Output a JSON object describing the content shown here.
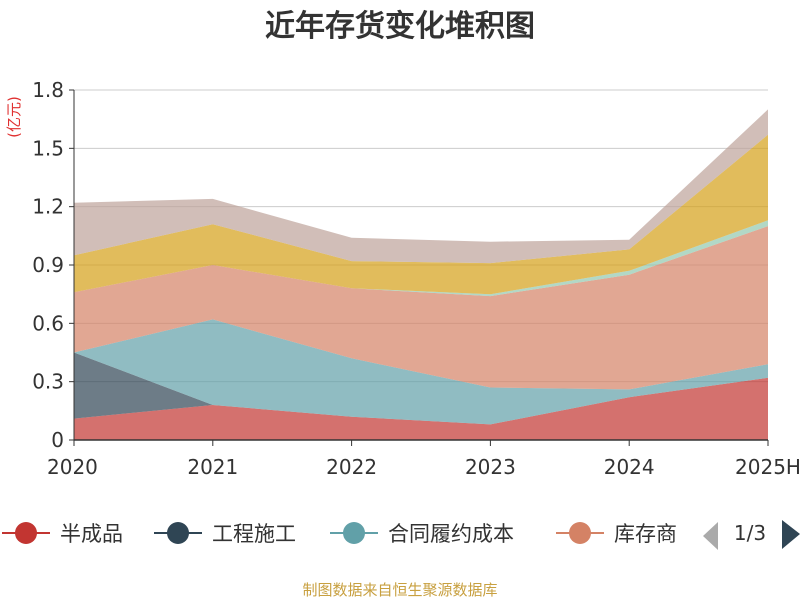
{
  "chart_data": {
    "type": "area",
    "stacked": true,
    "title": "近年存货变化堆积图",
    "ylabel": "(亿元)",
    "xlabel": "",
    "categories": [
      "2020",
      "2021",
      "2022",
      "2023",
      "2024",
      "2025H"
    ],
    "ylim": [
      0,
      1.8
    ],
    "yticks": [
      "0",
      "0.3",
      "0.6",
      "0.9",
      "1.2",
      "1.5",
      "1.8"
    ],
    "grid": true,
    "series": [
      {
        "name": "半成品",
        "color": "#c23531",
        "values": [
          0.11,
          0.18,
          0.12,
          0.08,
          0.22,
          0.32
        ]
      },
      {
        "name": "工程施工",
        "color": "#2f4554",
        "values": [
          0.34,
          0.0,
          0.0,
          0.0,
          0.0,
          0.0
        ]
      },
      {
        "name": "合同履约成本",
        "color": "#61a0a8",
        "values": [
          0.0,
          0.44,
          0.3,
          0.19,
          0.04,
          0.07
        ]
      },
      {
        "name": "库存商品",
        "color": "#d48265",
        "values": [
          0.31,
          0.28,
          0.36,
          0.47,
          0.59,
          0.71
        ]
      },
      {
        "name": "",
        "color": "#91c7ae",
        "values": [
          0.0,
          0.0,
          0.0,
          0.01,
          0.02,
          0.03
        ]
      },
      {
        "name": "",
        "color": "#d4a017",
        "values": [
          0.19,
          0.21,
          0.14,
          0.16,
          0.11,
          0.44
        ]
      },
      {
        "name": "",
        "color": "#bda29a",
        "values": [
          0.27,
          0.13,
          0.12,
          0.11,
          0.05,
          0.13
        ]
      }
    ],
    "legend": {
      "items": [
        "半成品",
        "工程施工",
        "合同履约成本",
        "库存商"
      ],
      "page": "1/3",
      "placement": "bottom"
    }
  },
  "source": "制图数据来自恒生聚源数据库"
}
